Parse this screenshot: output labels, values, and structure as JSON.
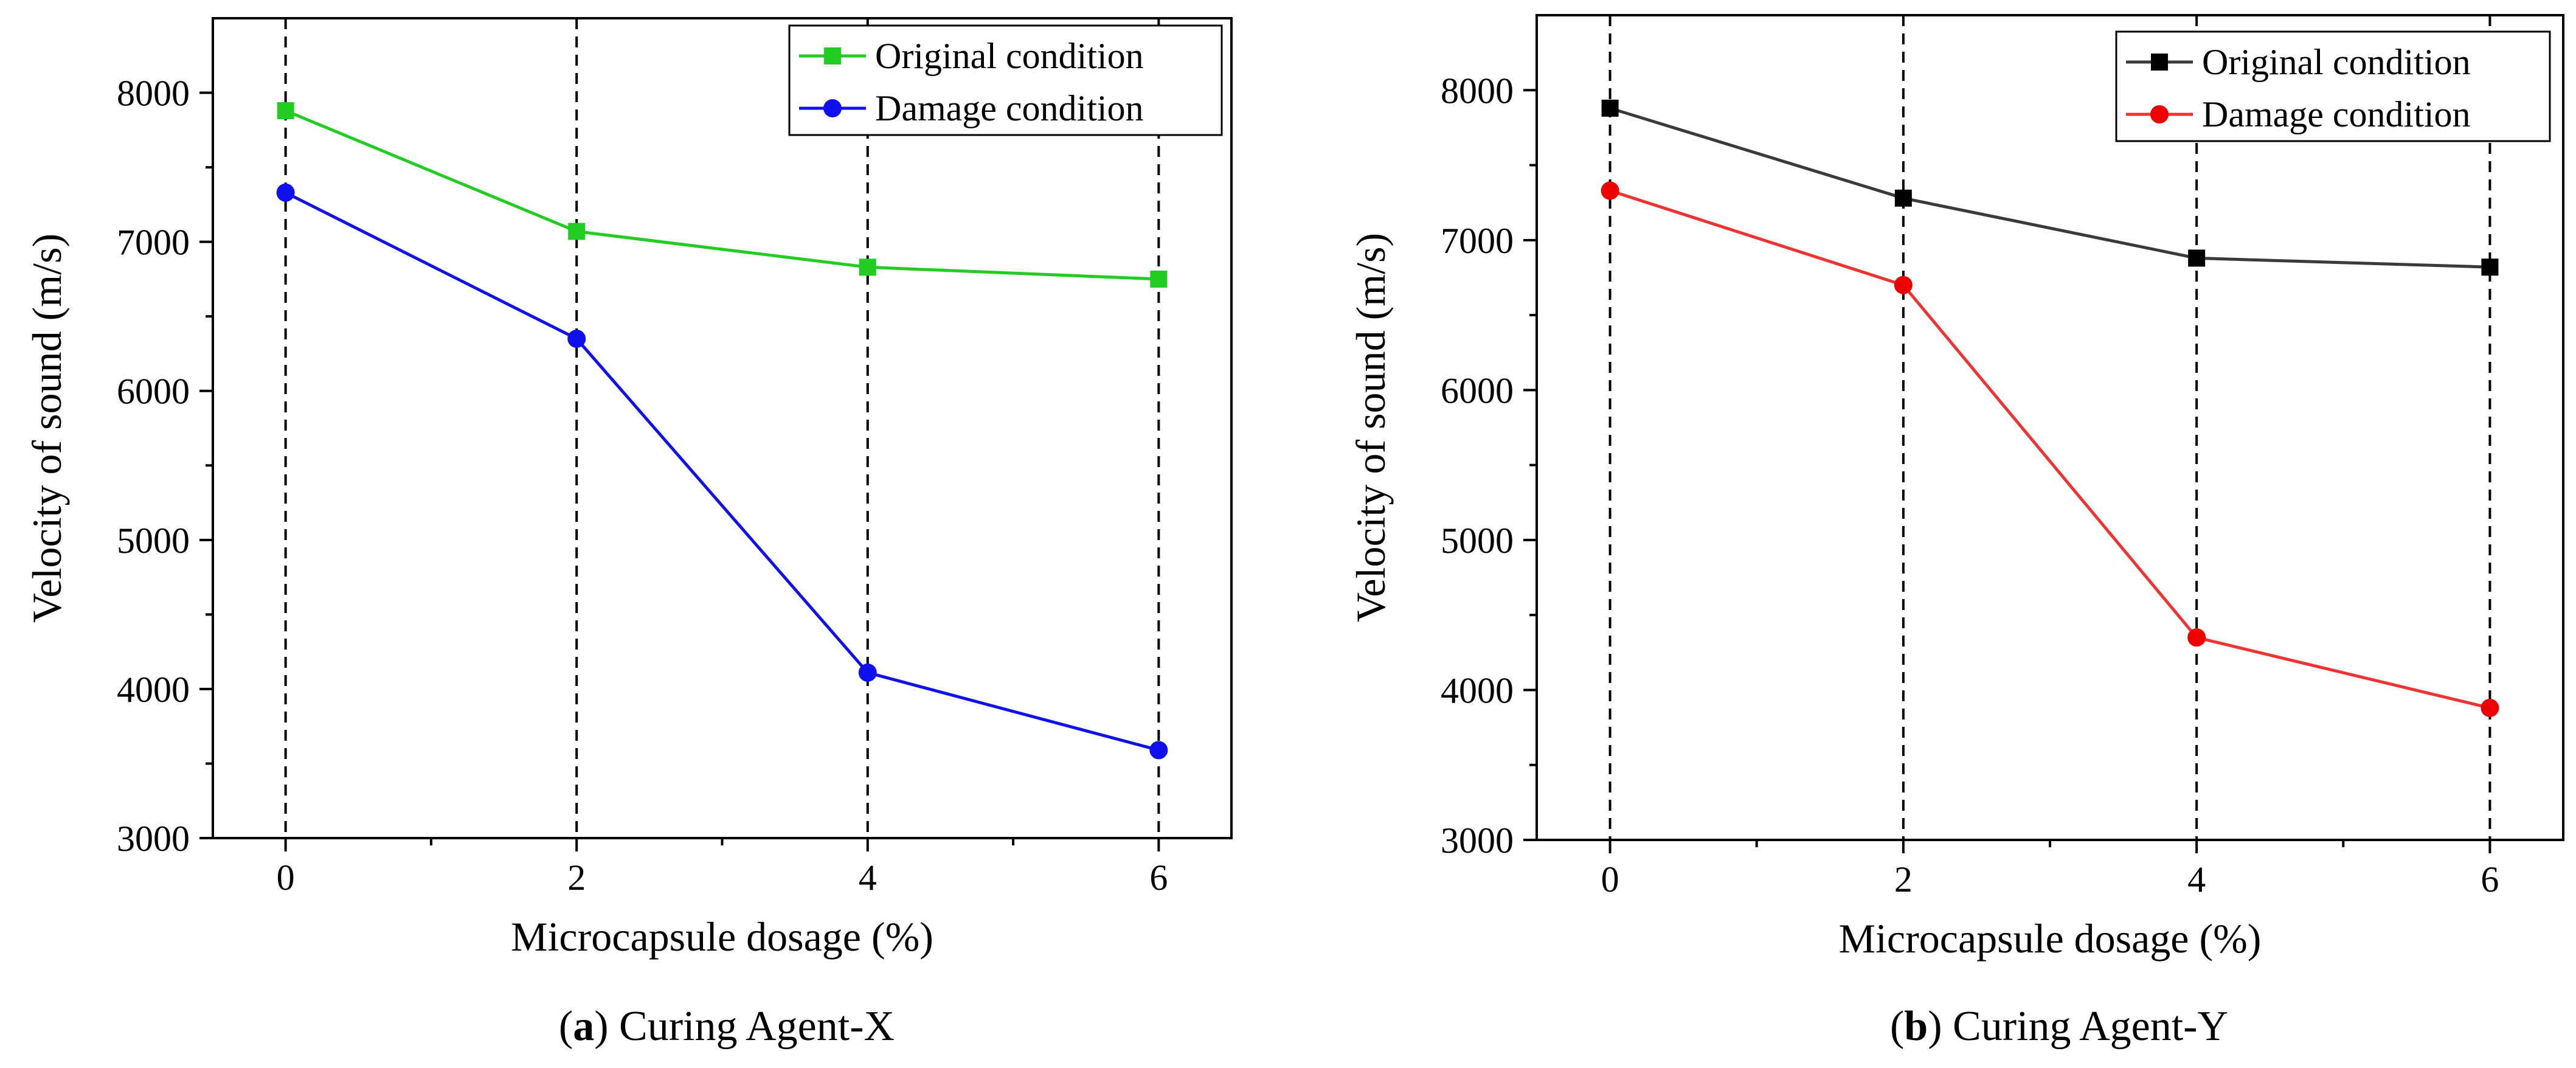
{
  "chart_data": [
    {
      "type": "line",
      "panel": "a",
      "caption_letter": "a",
      "caption_text": "Curing Agent-X",
      "xlabel": "Microcapsule dosage (%)",
      "ylabel": "Velocity of sound (m/s)",
      "x": [
        0,
        2,
        4,
        6
      ],
      "xlim": [
        -0.5,
        6.5
      ],
      "ylim": [
        3000,
        8500
      ],
      "x_ticks": [
        0,
        2,
        4,
        6
      ],
      "x_minor_ticks": [
        1,
        3,
        5
      ],
      "y_ticks": [
        3000,
        4000,
        5000,
        6000,
        7000,
        8000
      ],
      "y_minor_ticks": [
        3500,
        4500,
        5500,
        6500,
        7500
      ],
      "vertical_dashed_lines": [
        0,
        2,
        4,
        6
      ],
      "legend_position": "top-right",
      "series": [
        {
          "name": "Original condition",
          "marker": "square",
          "color": "#22cc22",
          "values": [
            7880,
            7070,
            6830,
            6750
          ]
        },
        {
          "name": "Damage condition",
          "marker": "circle",
          "color": "#1010ee",
          "values": [
            7330,
            6350,
            4110,
            3590
          ]
        }
      ]
    },
    {
      "type": "line",
      "panel": "b",
      "caption_letter": "b",
      "caption_text": "Curing Agent-Y",
      "xlabel": "Microcapsule dosage (%)",
      "ylabel": "Velocity of sound (m/s)",
      "x": [
        0,
        2,
        4,
        6
      ],
      "xlim": [
        -0.5,
        6.5
      ],
      "ylim": [
        3000,
        8500
      ],
      "x_ticks": [
        0,
        2,
        4,
        6
      ],
      "x_minor_ticks": [
        1,
        3,
        5
      ],
      "y_ticks": [
        3000,
        4000,
        5000,
        6000,
        7000,
        8000
      ],
      "y_minor_ticks": [
        3500,
        4500,
        5500,
        6500,
        7500
      ],
      "vertical_dashed_lines": [
        0,
        2,
        4,
        6
      ],
      "legend_position": "top-right",
      "series": [
        {
          "name": "Original condition",
          "marker": "square",
          "color": "#000000",
          "line_color": "#3a3a3a",
          "values": [
            7880,
            7280,
            6880,
            6820
          ]
        },
        {
          "name": "Damage condition",
          "marker": "circle",
          "color": "#ee0000",
          "line_color": "#ee3333",
          "values": [
            7330,
            6700,
            4350,
            3880
          ]
        }
      ]
    }
  ]
}
